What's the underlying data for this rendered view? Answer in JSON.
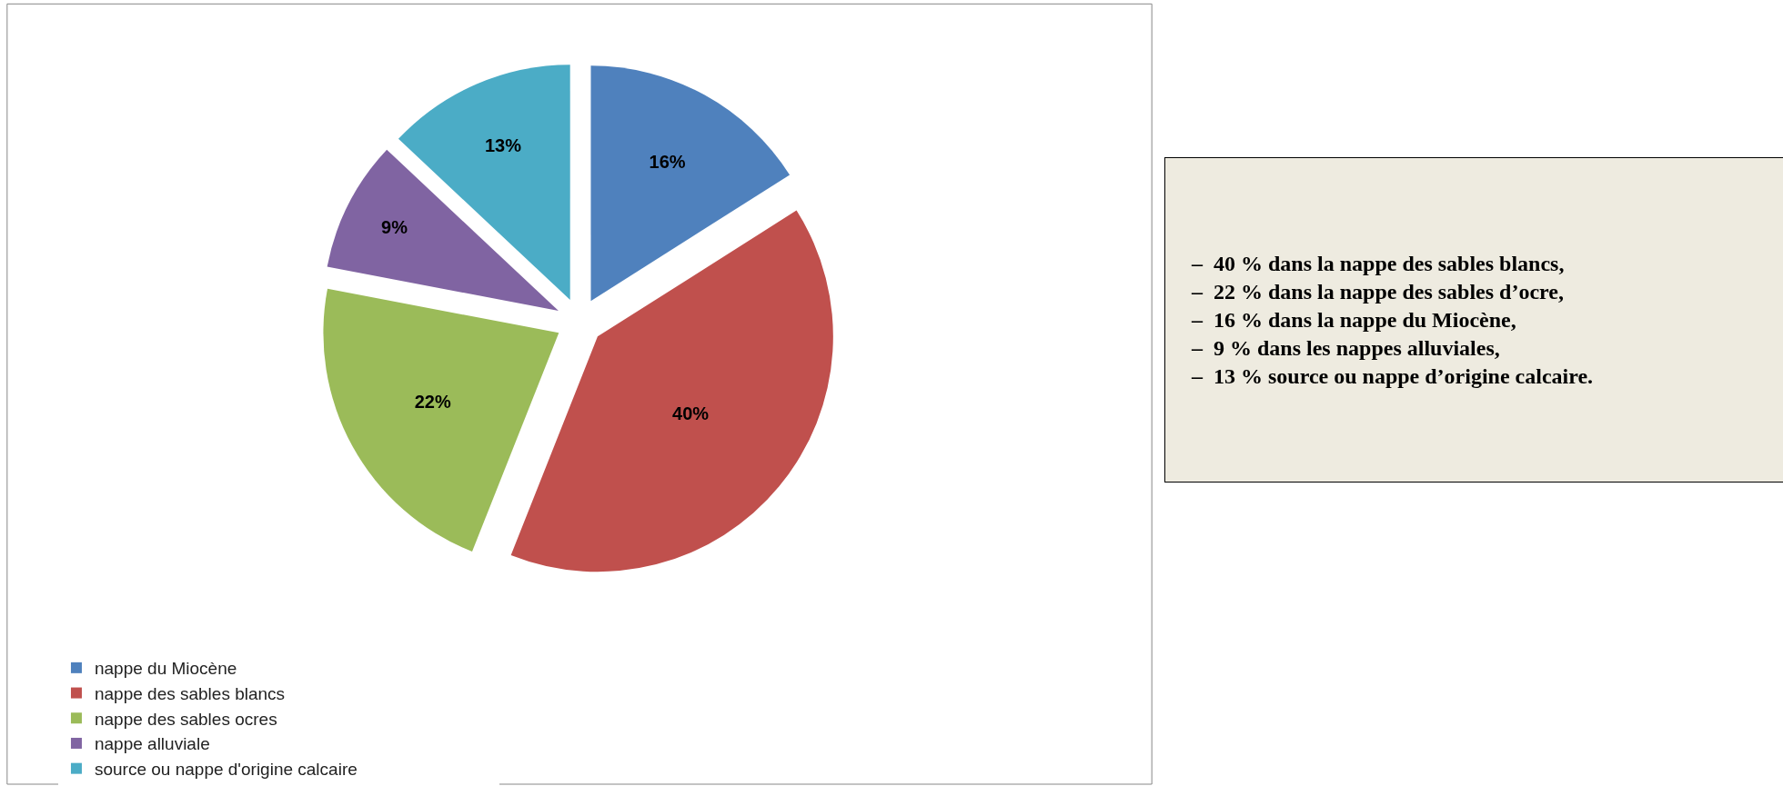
{
  "chart_data": {
    "type": "pie",
    "categories": [
      "nappe du Miocène",
      "nappe des sables blancs",
      "nappe des sables ocres",
      "nappe alluviale",
      "source ou nappe d'origine calcaire"
    ],
    "values": [
      16,
      40,
      22,
      9,
      13
    ],
    "colors": [
      "#4f81bd",
      "#c0504d",
      "#9bbb59",
      "#8064a2",
      "#4bacc6"
    ],
    "value_labels": [
      "16%",
      "40%",
      "22%",
      "9%",
      "13%"
    ],
    "legend": "bottom",
    "annotations": [
      "–  40 % dans la nappe des sables blancs,",
      "–  22 % dans la nappe des sables d’ocre,",
      "–  16 % dans la nappe du Miocène,",
      "–  9 % dans les nappes alluviales,",
      "–  13 % source ou nappe d’origine calcaire."
    ]
  }
}
